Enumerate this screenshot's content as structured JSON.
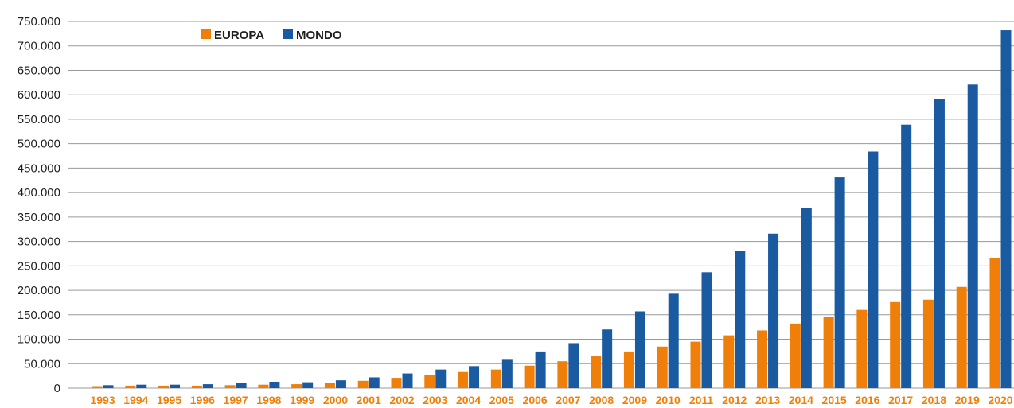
{
  "chart_data": {
    "type": "bar",
    "categories": [
      "1993",
      "1994",
      "1995",
      "1996",
      "1997",
      "1998",
      "1999",
      "2000",
      "2001",
      "2002",
      "2003",
      "2004",
      "2005",
      "2006",
      "2007",
      "2008",
      "2009",
      "2010",
      "2011",
      "2012",
      "2013",
      "2014",
      "2015",
      "2016",
      "2017",
      "2018",
      "2019",
      "2020"
    ],
    "series": [
      {
        "name": "EUROPA",
        "color": "#f07f09",
        "values": [
          4000,
          5000,
          5000,
          5000,
          6000,
          7000,
          8000,
          11000,
          15000,
          21000,
          27000,
          33000,
          38000,
          46000,
          55000,
          65000,
          75000,
          85000,
          95000,
          108000,
          118000,
          132000,
          146000,
          160000,
          176000,
          181000,
          207000,
          266000
        ]
      },
      {
        "name": "MONDO",
        "color": "#1a5aa0",
        "values": [
          6000,
          7000,
          7000,
          8000,
          10000,
          13000,
          12000,
          16000,
          22000,
          30000,
          38000,
          45000,
          58000,
          75000,
          92000,
          120000,
          157000,
          193000,
          237000,
          281000,
          316000,
          368000,
          431000,
          484000,
          539000,
          592000,
          621000,
          732000
        ]
      }
    ],
    "yticks": [
      "0",
      "50.000",
      "100.000",
      "150.000",
      "200.000",
      "250.000",
      "300.000",
      "350.000",
      "400.000",
      "450.000",
      "500.000",
      "550.000",
      "600.000",
      "650.000",
      "700.000",
      "750.000"
    ],
    "ylim": [
      0,
      750000
    ],
    "grid": true,
    "legend_position": "top-left",
    "title": "",
    "xlabel": "",
    "ylabel": ""
  }
}
